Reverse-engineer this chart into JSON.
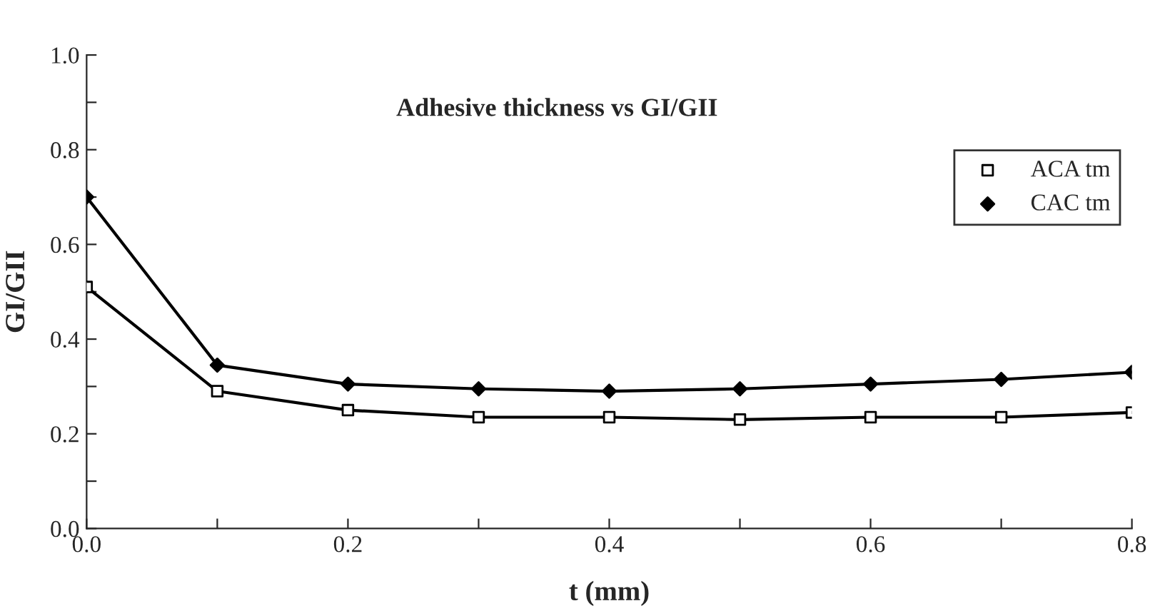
{
  "chart_data": {
    "type": "line",
    "title": "Adhesive thickness vs GI/GII",
    "xlabel": "t (mm)",
    "ylabel": "GI/GII",
    "x": [
      0.0,
      0.1,
      0.2,
      0.3,
      0.4,
      0.5,
      0.6,
      0.7,
      0.8
    ],
    "series": [
      {
        "name": "ACA tm",
        "color": "#000000",
        "marker": "square",
        "values": [
          0.51,
          0.29,
          0.25,
          0.235,
          0.235,
          0.23,
          0.235,
          0.235,
          0.245
        ]
      },
      {
        "name": "CAC tm",
        "color": "#000000",
        "marker": "diamond",
        "values": [
          0.7,
          0.345,
          0.305,
          0.295,
          0.29,
          0.295,
          0.305,
          0.315,
          0.33
        ]
      }
    ],
    "xlim": [
      0.0,
      0.8
    ],
    "ylim": [
      0.0,
      1.0
    ],
    "xticks": [
      {
        "value": 0.0,
        "label": "0.0"
      },
      {
        "value": 0.1,
        "label": null
      },
      {
        "value": 0.2,
        "label": "0.2"
      },
      {
        "value": 0.3,
        "label": null
      },
      {
        "value": 0.4,
        "label": "0.4"
      },
      {
        "value": 0.5,
        "label": null
      },
      {
        "value": 0.6,
        "label": "0.6"
      },
      {
        "value": 0.7,
        "label": null
      },
      {
        "value": 0.8,
        "label": "0.8"
      }
    ],
    "yticks": [
      {
        "value": 0.0,
        "label": "0.0"
      },
      {
        "value": 0.1,
        "label": null
      },
      {
        "value": 0.2,
        "label": "0.2"
      },
      {
        "value": 0.3,
        "label": null
      },
      {
        "value": 0.4,
        "label": "0.4"
      },
      {
        "value": 0.5,
        "label": null
      },
      {
        "value": 0.6,
        "label": "0.6"
      },
      {
        "value": 0.7,
        "label": null
      },
      {
        "value": 0.8,
        "label": "0.8"
      },
      {
        "value": 0.9,
        "label": null
      },
      {
        "value": 1.0,
        "label": "1.0"
      }
    ],
    "grid": false,
    "legend": "right",
    "line_style": "solid"
  }
}
